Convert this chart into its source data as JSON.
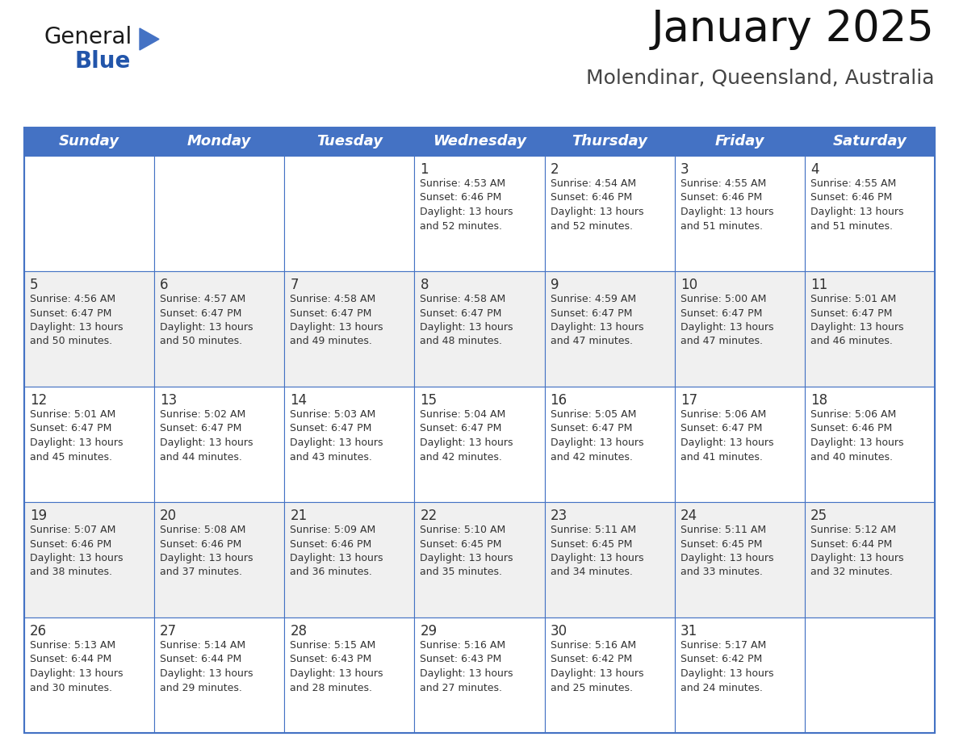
{
  "title": "January 2025",
  "subtitle": "Molendinar, Queensland, Australia",
  "header_bg": "#4472C4",
  "header_text_color": "#FFFFFF",
  "cell_bg_white": "#FFFFFF",
  "cell_bg_gray": "#F0F0F0",
  "border_color": "#4472C4",
  "text_color": "#333333",
  "days_of_week": [
    "Sunday",
    "Monday",
    "Tuesday",
    "Wednesday",
    "Thursday",
    "Friday",
    "Saturday"
  ],
  "calendar_data": [
    [
      {
        "day": "",
        "info": ""
      },
      {
        "day": "",
        "info": ""
      },
      {
        "day": "",
        "info": ""
      },
      {
        "day": "1",
        "info": "Sunrise: 4:53 AM\nSunset: 6:46 PM\nDaylight: 13 hours\nand 52 minutes."
      },
      {
        "day": "2",
        "info": "Sunrise: 4:54 AM\nSunset: 6:46 PM\nDaylight: 13 hours\nand 52 minutes."
      },
      {
        "day": "3",
        "info": "Sunrise: 4:55 AM\nSunset: 6:46 PM\nDaylight: 13 hours\nand 51 minutes."
      },
      {
        "day": "4",
        "info": "Sunrise: 4:55 AM\nSunset: 6:46 PM\nDaylight: 13 hours\nand 51 minutes."
      }
    ],
    [
      {
        "day": "5",
        "info": "Sunrise: 4:56 AM\nSunset: 6:47 PM\nDaylight: 13 hours\nand 50 minutes."
      },
      {
        "day": "6",
        "info": "Sunrise: 4:57 AM\nSunset: 6:47 PM\nDaylight: 13 hours\nand 50 minutes."
      },
      {
        "day": "7",
        "info": "Sunrise: 4:58 AM\nSunset: 6:47 PM\nDaylight: 13 hours\nand 49 minutes."
      },
      {
        "day": "8",
        "info": "Sunrise: 4:58 AM\nSunset: 6:47 PM\nDaylight: 13 hours\nand 48 minutes."
      },
      {
        "day": "9",
        "info": "Sunrise: 4:59 AM\nSunset: 6:47 PM\nDaylight: 13 hours\nand 47 minutes."
      },
      {
        "day": "10",
        "info": "Sunrise: 5:00 AM\nSunset: 6:47 PM\nDaylight: 13 hours\nand 47 minutes."
      },
      {
        "day": "11",
        "info": "Sunrise: 5:01 AM\nSunset: 6:47 PM\nDaylight: 13 hours\nand 46 minutes."
      }
    ],
    [
      {
        "day": "12",
        "info": "Sunrise: 5:01 AM\nSunset: 6:47 PM\nDaylight: 13 hours\nand 45 minutes."
      },
      {
        "day": "13",
        "info": "Sunrise: 5:02 AM\nSunset: 6:47 PM\nDaylight: 13 hours\nand 44 minutes."
      },
      {
        "day": "14",
        "info": "Sunrise: 5:03 AM\nSunset: 6:47 PM\nDaylight: 13 hours\nand 43 minutes."
      },
      {
        "day": "15",
        "info": "Sunrise: 5:04 AM\nSunset: 6:47 PM\nDaylight: 13 hours\nand 42 minutes."
      },
      {
        "day": "16",
        "info": "Sunrise: 5:05 AM\nSunset: 6:47 PM\nDaylight: 13 hours\nand 42 minutes."
      },
      {
        "day": "17",
        "info": "Sunrise: 5:06 AM\nSunset: 6:47 PM\nDaylight: 13 hours\nand 41 minutes."
      },
      {
        "day": "18",
        "info": "Sunrise: 5:06 AM\nSunset: 6:46 PM\nDaylight: 13 hours\nand 40 minutes."
      }
    ],
    [
      {
        "day": "19",
        "info": "Sunrise: 5:07 AM\nSunset: 6:46 PM\nDaylight: 13 hours\nand 38 minutes."
      },
      {
        "day": "20",
        "info": "Sunrise: 5:08 AM\nSunset: 6:46 PM\nDaylight: 13 hours\nand 37 minutes."
      },
      {
        "day": "21",
        "info": "Sunrise: 5:09 AM\nSunset: 6:46 PM\nDaylight: 13 hours\nand 36 minutes."
      },
      {
        "day": "22",
        "info": "Sunrise: 5:10 AM\nSunset: 6:45 PM\nDaylight: 13 hours\nand 35 minutes."
      },
      {
        "day": "23",
        "info": "Sunrise: 5:11 AM\nSunset: 6:45 PM\nDaylight: 13 hours\nand 34 minutes."
      },
      {
        "day": "24",
        "info": "Sunrise: 5:11 AM\nSunset: 6:45 PM\nDaylight: 13 hours\nand 33 minutes."
      },
      {
        "day": "25",
        "info": "Sunrise: 5:12 AM\nSunset: 6:44 PM\nDaylight: 13 hours\nand 32 minutes."
      }
    ],
    [
      {
        "day": "26",
        "info": "Sunrise: 5:13 AM\nSunset: 6:44 PM\nDaylight: 13 hours\nand 30 minutes."
      },
      {
        "day": "27",
        "info": "Sunrise: 5:14 AM\nSunset: 6:44 PM\nDaylight: 13 hours\nand 29 minutes."
      },
      {
        "day": "28",
        "info": "Sunrise: 5:15 AM\nSunset: 6:43 PM\nDaylight: 13 hours\nand 28 minutes."
      },
      {
        "day": "29",
        "info": "Sunrise: 5:16 AM\nSunset: 6:43 PM\nDaylight: 13 hours\nand 27 minutes."
      },
      {
        "day": "30",
        "info": "Sunrise: 5:16 AM\nSunset: 6:42 PM\nDaylight: 13 hours\nand 25 minutes."
      },
      {
        "day": "31",
        "info": "Sunrise: 5:17 AM\nSunset: 6:42 PM\nDaylight: 13 hours\nand 24 minutes."
      },
      {
        "day": "",
        "info": ""
      }
    ]
  ],
  "logo_text_general": "General",
  "logo_text_blue": "Blue",
  "logo_triangle_color": "#4472C4",
  "logo_general_color": "#1a1a1a",
  "logo_blue_color": "#2255AA",
  "title_fontsize": 38,
  "subtitle_fontsize": 18,
  "header_fontsize": 13,
  "day_num_fontsize": 12,
  "info_fontsize": 9,
  "logo_fontsize_general": 20,
  "logo_fontsize_blue": 20
}
